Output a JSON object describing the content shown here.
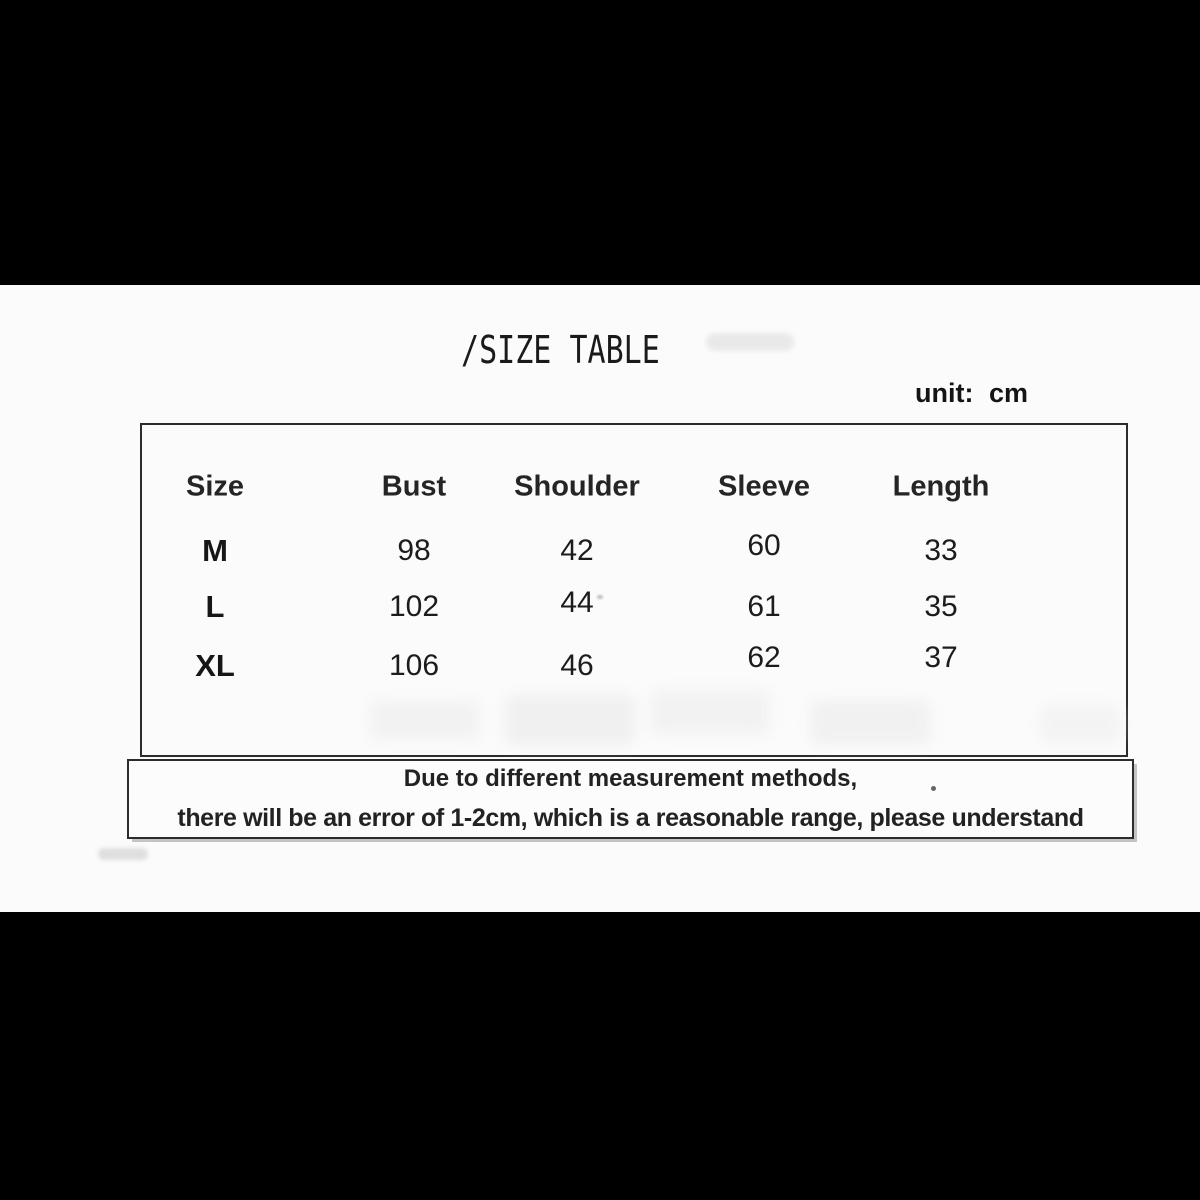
{
  "unit_label": "unit: cm",
  "note": {
    "line1": "Due to different measurement methods,",
    "line2": "there will be an error of 1-2cm, which is a reasonable range, please understand"
  },
  "colors": {
    "letterbox": "#000000",
    "panel": "#fbfbfb",
    "text": "#1e1e1e",
    "border": "#2c2c2c"
  },
  "chart_data": {
    "type": "table",
    "title": "/SIZE TABLE",
    "unit": "cm",
    "columns": [
      "Size",
      "Bust",
      "Shoulder",
      "Sleeve",
      "Length"
    ],
    "rows": [
      [
        "M",
        98,
        42,
        60,
        33
      ],
      [
        "L",
        102,
        44,
        61,
        35
      ],
      [
        "XL",
        106,
        46,
        62,
        37
      ]
    ],
    "footnote": "Due to different measurement methods, there will be an error of 1-2cm, which is a reasonable range, please understand"
  }
}
